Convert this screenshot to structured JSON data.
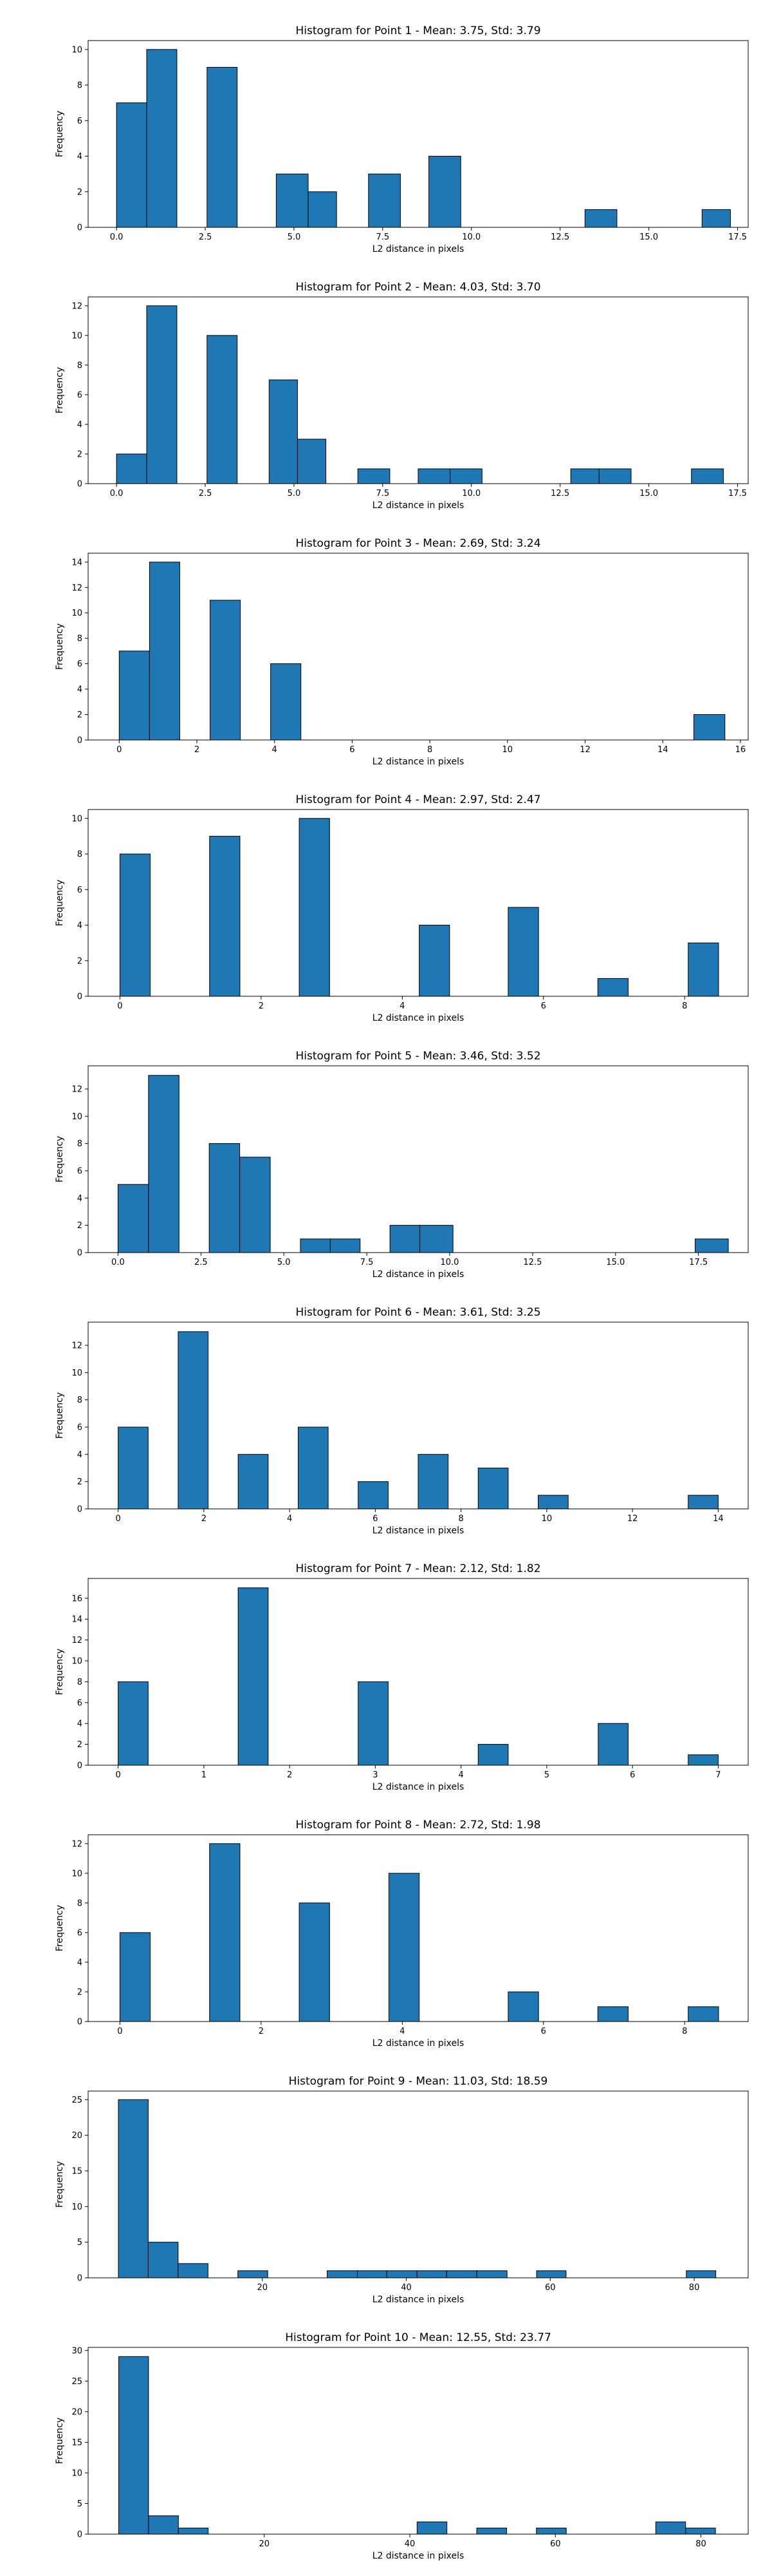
{
  "chart_data": [
    {
      "type": "bar",
      "title": "Histogram for Point 1 - Mean: 3.75, Std: 3.79",
      "xlabel": "L2 distance in pixels",
      "ylabel": "Frequency",
      "color": "#1f77b4",
      "xlim": [
        -0.8,
        17.8
      ],
      "ylim": [
        0,
        10.5
      ],
      "xticks": [
        0,
        2.5,
        5,
        7.5,
        10,
        12.5,
        15,
        17.5
      ],
      "xtick_labels": [
        "0.0",
        "2.5",
        "5.0",
        "7.5",
        "10.0",
        "12.5",
        "15.0",
        "17.5"
      ],
      "yticks": [
        0,
        2,
        4,
        6,
        8,
        10
      ],
      "ytick_labels": [
        "0",
        "2",
        "4",
        "6",
        "8",
        "10"
      ],
      "bins": [
        [
          0,
          0.85,
          7
        ],
        [
          0.85,
          1.7,
          10
        ],
        [
          2.55,
          3.4,
          9
        ],
        [
          4.5,
          5.4,
          3
        ],
        [
          5.4,
          6.2,
          2
        ],
        [
          7.1,
          8.0,
          3
        ],
        [
          8.8,
          9.7,
          4
        ],
        [
          13.2,
          14.1,
          1
        ],
        [
          16.5,
          17.3,
          1
        ]
      ]
    },
    {
      "type": "bar",
      "title": "Histogram for Point 2 - Mean: 4.03, Std: 3.70",
      "xlabel": "L2 distance in pixels",
      "ylabel": "Frequency",
      "color": "#1f77b4",
      "xlim": [
        -0.8,
        17.8
      ],
      "ylim": [
        0,
        12.6
      ],
      "xticks": [
        0,
        2.5,
        5,
        7.5,
        10,
        12.5,
        15,
        17.5
      ],
      "xtick_labels": [
        "0.0",
        "2.5",
        "5.0",
        "7.5",
        "10.0",
        "12.5",
        "15.0",
        "17.5"
      ],
      "yticks": [
        0,
        2,
        4,
        6,
        8,
        10,
        12
      ],
      "ytick_labels": [
        "0",
        "2",
        "4",
        "6",
        "8",
        "10",
        "12"
      ],
      "bins": [
        [
          0,
          0.85,
          2
        ],
        [
          0.85,
          1.7,
          12
        ],
        [
          2.55,
          3.4,
          10
        ],
        [
          4.3,
          5.1,
          7
        ],
        [
          5.1,
          5.9,
          3
        ],
        [
          6.8,
          7.7,
          1
        ],
        [
          8.5,
          9.4,
          1
        ],
        [
          9.4,
          10.3,
          1
        ],
        [
          12.8,
          13.6,
          1
        ],
        [
          13.6,
          14.5,
          1
        ],
        [
          16.2,
          17.1,
          1
        ]
      ]
    },
    {
      "type": "bar",
      "title": "Histogram for Point 3 - Mean: 2.69, Std: 3.24",
      "xlabel": "L2 distance in pixels",
      "ylabel": "Frequency",
      "color": "#1f77b4",
      "xlim": [
        -0.8,
        16.2
      ],
      "ylim": [
        0,
        14.7
      ],
      "xticks": [
        0,
        2,
        4,
        6,
        8,
        10,
        12,
        14,
        16
      ],
      "xtick_labels": [
        "0",
        "2",
        "4",
        "6",
        "8",
        "10",
        "12",
        "14",
        "16"
      ],
      "yticks": [
        0,
        2,
        4,
        6,
        8,
        10,
        12,
        14
      ],
      "ytick_labels": [
        "0",
        "2",
        "4",
        "6",
        "8",
        "10",
        "12",
        "14"
      ],
      "bins": [
        [
          0,
          0.78,
          7
        ],
        [
          0.78,
          1.56,
          14
        ],
        [
          2.34,
          3.12,
          11
        ],
        [
          3.9,
          4.68,
          6
        ],
        [
          14.8,
          15.6,
          2
        ]
      ]
    },
    {
      "type": "bar",
      "title": "Histogram for Point 4 - Mean: 2.97, Std: 2.47",
      "xlabel": "L2 distance in pixels",
      "ylabel": "Frequency",
      "color": "#1f77b4",
      "xlim": [
        -0.45,
        8.9
      ],
      "ylim": [
        0,
        10.5
      ],
      "xticks": [
        0,
        2,
        4,
        6,
        8
      ],
      "xtick_labels": [
        "0",
        "2",
        "4",
        "6",
        "8"
      ],
      "yticks": [
        0,
        2,
        4,
        6,
        8,
        10
      ],
      "ytick_labels": [
        "0",
        "2",
        "4",
        "6",
        "8",
        "10"
      ],
      "bins": [
        [
          0,
          0.43,
          8
        ],
        [
          1.27,
          1.7,
          9
        ],
        [
          2.54,
          2.97,
          10
        ],
        [
          4.24,
          4.67,
          4
        ],
        [
          5.5,
          5.93,
          5
        ],
        [
          6.77,
          7.2,
          1
        ],
        [
          8.05,
          8.48,
          3
        ]
      ]
    },
    {
      "type": "bar",
      "title": "Histogram for Point 5 - Mean: 3.46, Std: 3.52",
      "xlabel": "L2 distance in pixels",
      "ylabel": "Frequency",
      "color": "#1f77b4",
      "xlim": [
        -0.9,
        19.0
      ],
      "ylim": [
        0,
        13.7
      ],
      "xticks": [
        0,
        2.5,
        5,
        7.5,
        10,
        12.5,
        15,
        17.5
      ],
      "xtick_labels": [
        "0.0",
        "2.5",
        "5.0",
        "7.5",
        "10.0",
        "12.5",
        "15.0",
        "17.5"
      ],
      "yticks": [
        0,
        2,
        4,
        6,
        8,
        10,
        12
      ],
      "ytick_labels": [
        "0",
        "2",
        "4",
        "6",
        "8",
        "10",
        "12"
      ],
      "bins": [
        [
          0,
          0.92,
          5
        ],
        [
          0.92,
          1.84,
          13
        ],
        [
          2.75,
          3.67,
          8
        ],
        [
          3.67,
          4.59,
          7
        ],
        [
          5.5,
          6.4,
          1
        ],
        [
          6.4,
          7.3,
          1
        ],
        [
          8.2,
          9.1,
          2
        ],
        [
          9.1,
          10.1,
          2
        ],
        [
          17.4,
          18.4,
          1
        ]
      ]
    },
    {
      "type": "bar",
      "title": "Histogram for Point 6 - Mean: 3.61, Std: 3.25",
      "xlabel": "L2 distance in pixels",
      "ylabel": "Frequency",
      "color": "#1f77b4",
      "xlim": [
        -0.7,
        14.7
      ],
      "ylim": [
        0,
        13.7
      ],
      "xticks": [
        0,
        2,
        4,
        6,
        8,
        10,
        12,
        14
      ],
      "xtick_labels": [
        "0",
        "2",
        "4",
        "6",
        "8",
        "10",
        "12",
        "14"
      ],
      "yticks": [
        0,
        2,
        4,
        6,
        8,
        10,
        12
      ],
      "ytick_labels": [
        "0",
        "2",
        "4",
        "6",
        "8",
        "10",
        "12"
      ],
      "bins": [
        [
          0,
          0.7,
          6
        ],
        [
          1.4,
          2.1,
          13
        ],
        [
          2.8,
          3.5,
          4
        ],
        [
          4.2,
          4.9,
          6
        ],
        [
          5.6,
          6.3,
          2
        ],
        [
          7.0,
          7.7,
          4
        ],
        [
          8.4,
          9.1,
          3
        ],
        [
          9.8,
          10.5,
          1
        ],
        [
          13.3,
          14.0,
          1
        ]
      ]
    },
    {
      "type": "bar",
      "title": "Histogram for Point 7 - Mean: 2.12, Std: 1.82",
      "xlabel": "L2 distance in pixels",
      "ylabel": "Frequency",
      "color": "#1f77b4",
      "xlim": [
        -0.35,
        7.35
      ],
      "ylim": [
        0,
        17.9
      ],
      "xticks": [
        0,
        1,
        2,
        3,
        4,
        5,
        6,
        7
      ],
      "xtick_labels": [
        "0",
        "1",
        "2",
        "3",
        "4",
        "5",
        "6",
        "7"
      ],
      "yticks": [
        0,
        2,
        4,
        6,
        8,
        10,
        12,
        14,
        16
      ],
      "ytick_labels": [
        "0",
        "2",
        "4",
        "6",
        "8",
        "10",
        "12",
        "14",
        "16"
      ],
      "bins": [
        [
          0,
          0.35,
          8
        ],
        [
          1.4,
          1.75,
          17
        ],
        [
          2.8,
          3.15,
          8
        ],
        [
          4.2,
          4.55,
          2
        ],
        [
          5.6,
          5.95,
          4
        ],
        [
          6.65,
          7.0,
          1
        ]
      ]
    },
    {
      "type": "bar",
      "title": "Histogram for Point 8 - Mean: 2.72, Std: 1.98",
      "xlabel": "L2 distance in pixels",
      "ylabel": "Frequency",
      "color": "#1f77b4",
      "xlim": [
        -0.45,
        8.9
      ],
      "ylim": [
        0,
        12.6
      ],
      "xticks": [
        0,
        2,
        4,
        6,
        8
      ],
      "xtick_labels": [
        "0",
        "2",
        "4",
        "6",
        "8"
      ],
      "yticks": [
        0,
        2,
        4,
        6,
        8,
        10,
        12
      ],
      "ytick_labels": [
        "0",
        "2",
        "4",
        "6",
        "8",
        "10",
        "12"
      ],
      "bins": [
        [
          0,
          0.43,
          6
        ],
        [
          1.27,
          1.7,
          12
        ],
        [
          2.54,
          2.97,
          8
        ],
        [
          3.81,
          4.24,
          10
        ],
        [
          5.5,
          5.93,
          2
        ],
        [
          6.77,
          7.2,
          1
        ],
        [
          8.05,
          8.48,
          1
        ]
      ]
    },
    {
      "type": "bar",
      "title": "Histogram for Point 9 - Mean: 11.03, Std: 18.59",
      "xlabel": "L2 distance in pixels",
      "ylabel": "Frequency",
      "color": "#1f77b4",
      "xlim": [
        -4.2,
        87.5
      ],
      "ylim": [
        0,
        26.2
      ],
      "xticks": [
        20,
        40,
        60,
        80
      ],
      "xtick_labels": [
        "20",
        "40",
        "60",
        "80"
      ],
      "yticks": [
        0,
        5,
        10,
        15,
        20,
        25
      ],
      "ytick_labels": [
        "0",
        "5",
        "10",
        "15",
        "20",
        "25"
      ],
      "bins": [
        [
          0,
          4.15,
          25
        ],
        [
          4.15,
          8.3,
          5
        ],
        [
          8.3,
          12.45,
          2
        ],
        [
          16.6,
          20.75,
          1
        ],
        [
          29.0,
          33.2,
          1
        ],
        [
          33.2,
          37.3,
          1
        ],
        [
          37.3,
          41.5,
          1
        ],
        [
          41.5,
          45.6,
          1
        ],
        [
          45.6,
          49.8,
          1
        ],
        [
          49.8,
          54.0,
          1
        ],
        [
          58.1,
          62.2,
          1
        ],
        [
          78.9,
          83.0,
          1
        ]
      ]
    },
    {
      "type": "bar",
      "title": "Histogram for Point 10 - Mean: 12.55, Std: 23.77",
      "xlabel": "L2 distance in pixels",
      "ylabel": "Frequency",
      "color": "#1f77b4",
      "xlim": [
        -4.2,
        86.5
      ],
      "ylim": [
        0,
        30.5
      ],
      "xticks": [
        20,
        40,
        60,
        80
      ],
      "xtick_labels": [
        "20",
        "40",
        "60",
        "80"
      ],
      "yticks": [
        0,
        5,
        10,
        15,
        20,
        25,
        30
      ],
      "ytick_labels": [
        "0",
        "5",
        "10",
        "15",
        "20",
        "25",
        "30"
      ],
      "bins": [
        [
          0,
          4.1,
          29
        ],
        [
          4.1,
          8.2,
          3
        ],
        [
          8.2,
          12.3,
          1
        ],
        [
          41.0,
          45.1,
          2
        ],
        [
          49.2,
          53.3,
          1
        ],
        [
          57.4,
          61.5,
          1
        ],
        [
          73.8,
          77.9,
          2
        ],
        [
          77.9,
          82.0,
          1
        ]
      ]
    }
  ]
}
